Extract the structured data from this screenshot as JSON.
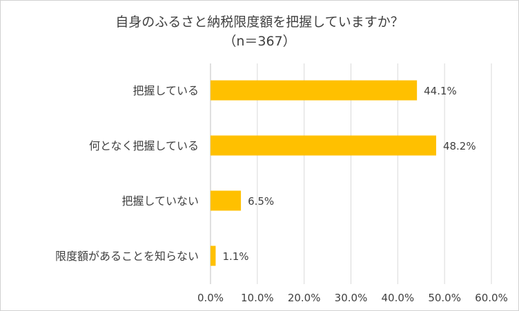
{
  "chart_data": {
    "type": "bar",
    "orientation": "horizontal",
    "title": "自身のふるさと納税限度額を把握していますか？",
    "subtitle": "（n＝367）",
    "categories": [
      "把握している",
      "何となく把握している",
      "把握していない",
      "限度額があることを知らない"
    ],
    "values": [
      44.1,
      48.2,
      6.5,
      1.1
    ],
    "data_labels": [
      "44.1%",
      "48.2%",
      "6.5%",
      "1.1%"
    ],
    "xlim": [
      0,
      60
    ],
    "x_ticks": [
      0,
      10,
      20,
      30,
      40,
      50,
      60
    ],
    "x_tick_labels": [
      "0.0%",
      "10.0%",
      "20.0%",
      "30.0%",
      "40.0%",
      "50.0%",
      "60.0%"
    ],
    "xlabel": "",
    "ylabel": "",
    "grid": "vertical",
    "legend": "none",
    "colors": {
      "bar": "#FFC000",
      "grid": "#D9D9D9",
      "text": "#404040",
      "border": "#D0D0D0"
    }
  }
}
